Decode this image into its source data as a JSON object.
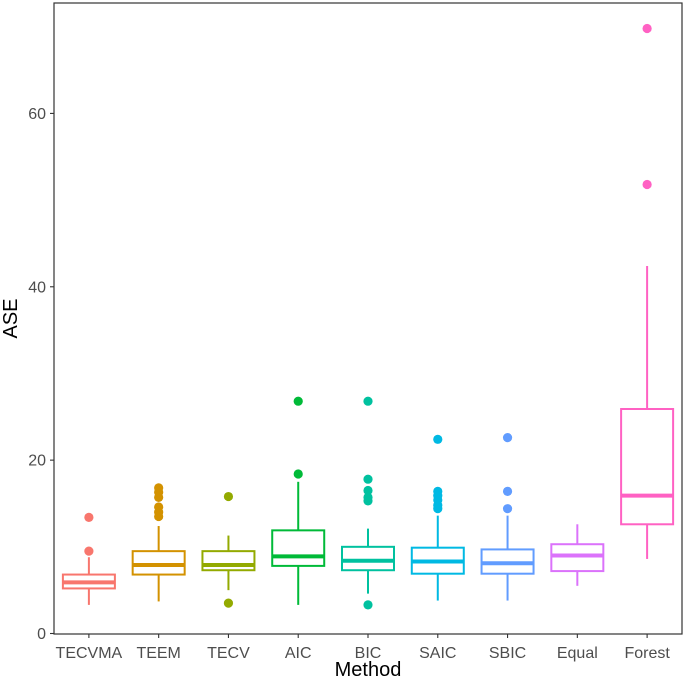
{
  "chart_data": {
    "type": "boxplot",
    "title": "",
    "xlabel": "Method",
    "ylabel": "ASE",
    "ylim": [
      0,
      72
    ],
    "yticks": [
      0,
      20,
      40,
      60
    ],
    "grid": false,
    "legend": "none",
    "categories": [
      "TECVMA",
      "TEEM",
      "TECV",
      "AIC",
      "BIC",
      "SAIC",
      "SBIC",
      "Equal",
      "Forest"
    ],
    "boxes": [
      {
        "name": "TECVMA",
        "color": "#F8766D",
        "whisker_low": 3.3,
        "q1": 5.2,
        "median": 5.9,
        "q3": 6.8,
        "whisker_high": 8.8,
        "outliers": [
          9.5,
          13.4
        ]
      },
      {
        "name": "TEEM",
        "color": "#D39200",
        "whisker_low": 3.7,
        "q1": 6.8,
        "median": 7.9,
        "q3": 9.5,
        "whisker_high": 12.4,
        "outliers": [
          13.5,
          14.0,
          14.6,
          15.7,
          16.3,
          16.8
        ]
      },
      {
        "name": "TECV",
        "color": "#93AA00",
        "whisker_low": 5.0,
        "q1": 7.3,
        "median": 7.9,
        "q3": 9.5,
        "whisker_high": 11.3,
        "outliers": [
          3.5,
          15.8
        ]
      },
      {
        "name": "AIC",
        "color": "#00BA38",
        "whisker_low": 3.3,
        "q1": 7.8,
        "median": 8.9,
        "q3": 11.9,
        "whisker_high": 17.5,
        "outliers": [
          18.4,
          26.8
        ]
      },
      {
        "name": "BIC",
        "color": "#00C19F",
        "whisker_low": 4.6,
        "q1": 7.3,
        "median": 8.4,
        "q3": 10.0,
        "whisker_high": 12.1,
        "outliers": [
          3.3,
          15.3,
          15.7,
          16.5,
          17.8,
          26.8
        ]
      },
      {
        "name": "SAIC",
        "color": "#00B9E3",
        "whisker_low": 3.8,
        "q1": 6.9,
        "median": 8.3,
        "q3": 9.9,
        "whisker_high": 13.6,
        "outliers": [
          14.4,
          14.8,
          15.4,
          15.9,
          16.4,
          22.4
        ]
      },
      {
        "name": "SBIC",
        "color": "#619CFF",
        "whisker_low": 3.8,
        "q1": 6.9,
        "median": 8.1,
        "q3": 9.7,
        "whisker_high": 13.6,
        "outliers": [
          14.4,
          16.4,
          22.6
        ]
      },
      {
        "name": "Equal",
        "color": "#DB72FB",
        "whisker_low": 5.5,
        "q1": 7.2,
        "median": 9.0,
        "q3": 10.3,
        "whisker_high": 12.6,
        "outliers": []
      },
      {
        "name": "Forest",
        "color": "#FF61C3",
        "whisker_low": 8.6,
        "q1": 12.6,
        "median": 15.9,
        "q3": 25.9,
        "whisker_high": 42.4,
        "outliers": [
          51.8,
          69.8
        ]
      }
    ]
  }
}
